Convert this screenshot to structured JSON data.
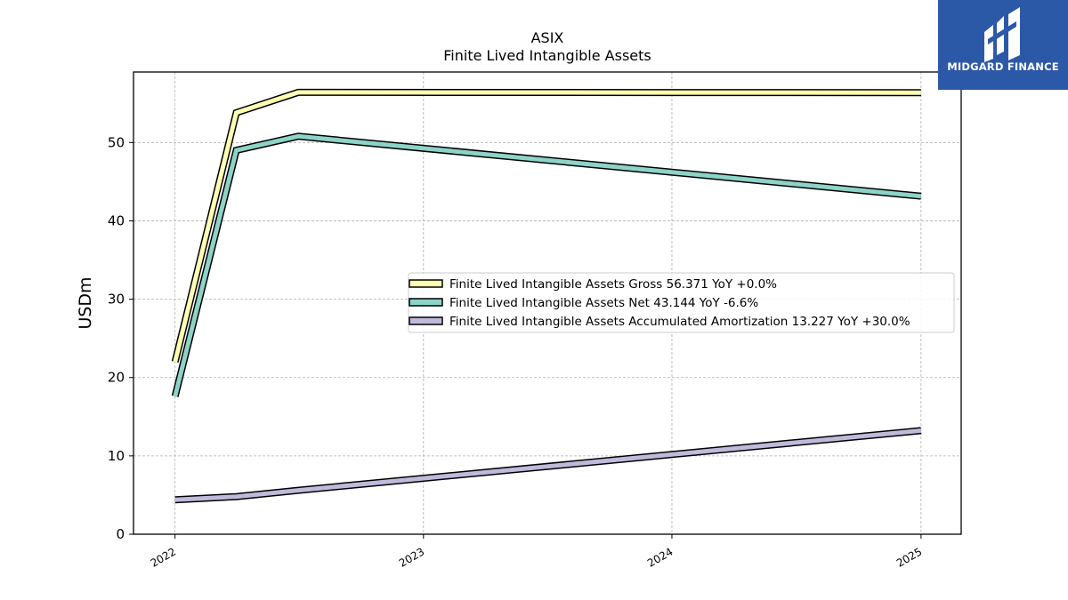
{
  "chart_data": {
    "type": "line",
    "title": "ASIX",
    "subtitle": "Finite Lived Intangible Assets",
    "xlabel": "",
    "ylabel": "USDm",
    "x": [
      "2022-01-01",
      "2022-04-01",
      "2022-07-01",
      "2025-01-01"
    ],
    "xticks": [
      "2022",
      "2023",
      "2024",
      "2025"
    ],
    "ylim": [
      0,
      59
    ],
    "yticks": [
      0,
      10,
      20,
      30,
      40,
      50
    ],
    "grid": true,
    "legend_position": "center-right",
    "series": [
      {
        "name": "Finite Lived Intangible Assets Gross",
        "legend_label": "Finite Lived Intangible Assets Gross  56.371 YoY +0.0%",
        "values": [
          22.0,
          53.8,
          56.4,
          56.371
        ],
        "color": "#ffffb3"
      },
      {
        "name": "Finite Lived Intangible Assets Net",
        "legend_label": "Finite Lived Intangible Assets Net  43.144 YoY -6.6%",
        "values": [
          17.6,
          49.0,
          50.8,
          43.144
        ],
        "color": "#8dd3c7"
      },
      {
        "name": "Finite Lived Intangible Assets Accumulated Amortization",
        "legend_label": "Finite Lived Intangible Assets Accumulated Amortization  13.227 YoY +30.0%",
        "values": [
          4.4,
          4.8,
          5.6,
          13.227
        ],
        "color": "#bebada"
      }
    ]
  },
  "logo": {
    "text": "MIDGARD FINANCE",
    "color": "#2c58a8"
  }
}
